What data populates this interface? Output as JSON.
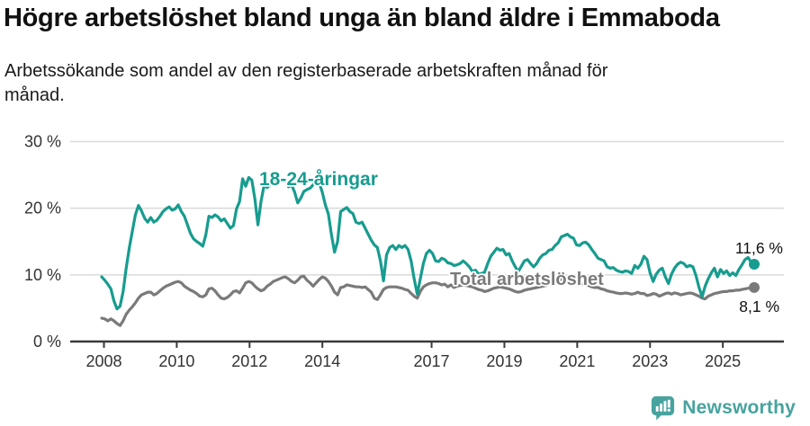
{
  "header": {
    "title": "Högre arbetslöshet bland unga än bland äldre i Emmaboda",
    "subtitle_lines": [
      "Arbetssökande som andel av den registerbaserade arbetskraften månad för",
      "månad."
    ]
  },
  "footer": {
    "brand": "Newsworthy",
    "logo_icon": "bar-chart-speech-bubble"
  },
  "colors": {
    "young": "#179c8f",
    "total": "#7a7a7a",
    "brand": "#47a39e",
    "grid": "#d9d9d9",
    "axis": "#3a3a3a",
    "tick_text": "#333333",
    "value_text": "#111111"
  },
  "chart_data": {
    "type": "line",
    "title": "Högre arbetslöshet bland unga än bland äldre i Emmaboda",
    "subtitle": "Arbetssökande som andel av den registerbaserade arbetskraften månad för månad.",
    "unit": "%",
    "x_start": "2008-01",
    "x_end": "2025-10",
    "x_tick_years": [
      2008,
      2010,
      2012,
      2014,
      2017,
      2019,
      2021,
      2023,
      2025
    ],
    "y_ticks": [
      {
        "v": 0,
        "label": "0 %"
      },
      {
        "v": 10,
        "label": "10 %"
      },
      {
        "v": 20,
        "label": "20 %"
      },
      {
        "v": 30,
        "label": "30 %"
      }
    ],
    "ylim": [
      0,
      30
    ],
    "grid": true,
    "legend_position": "inline-labels",
    "series": [
      {
        "name": "Total arbetslöshet",
        "color": "#7a7a7a",
        "end_label": "8,1 %",
        "end_value": 8.1,
        "values": [
          3.5,
          3.4,
          3.1,
          3.4,
          3.1,
          2.7,
          2.4,
          3.1,
          4.1,
          4.7,
          5.2,
          5.8,
          6.5,
          7.0,
          7.2,
          7.4,
          7.4,
          7.0,
          7.2,
          7.6,
          8.0,
          8.3,
          8.5,
          8.7,
          8.9,
          9.0,
          8.8,
          8.3,
          8.0,
          7.7,
          7.5,
          7.2,
          6.8,
          6.7,
          7.0,
          7.9,
          8.0,
          7.6,
          7.0,
          6.5,
          6.4,
          6.6,
          7.0,
          7.5,
          7.6,
          7.3,
          8.0,
          8.8,
          9.0,
          8.8,
          8.3,
          7.9,
          7.6,
          7.8,
          8.3,
          8.6,
          9.0,
          9.2,
          9.4,
          9.6,
          9.7,
          9.4,
          9.0,
          8.8,
          9.2,
          9.7,
          9.8,
          9.2,
          8.8,
          8.3,
          8.8,
          9.3,
          9.7,
          9.5,
          9.0,
          8.3,
          7.4,
          7.0,
          8.1,
          8.2,
          8.5,
          8.4,
          8.3,
          8.2,
          8.2,
          8.1,
          8.2,
          7.8,
          7.4,
          6.5,
          6.3,
          7.0,
          7.8,
          8.1,
          8.2,
          8.2,
          8.2,
          8.1,
          8.0,
          7.8,
          7.7,
          7.2,
          6.8,
          6.5,
          7.5,
          8.2,
          8.5,
          8.7,
          8.8,
          8.8,
          8.7,
          8.5,
          8.6,
          8.2,
          8.5,
          8.1,
          8.3,
          8.4,
          8.5,
          8.4,
          8.3,
          8.2,
          8.0,
          7.8,
          7.7,
          7.5,
          7.6,
          7.8,
          8.0,
          8.1,
          8.2,
          8.1,
          8.0,
          7.9,
          7.7,
          7.5,
          7.4,
          7.5,
          7.7,
          7.8,
          7.9,
          8.0,
          8.1,
          8.2,
          8.3,
          8.4,
          8.6,
          8.9,
          9.1,
          9.2,
          9.3,
          9.2,
          9.1,
          9.0,
          8.9,
          8.8,
          8.7,
          8.6,
          8.5,
          8.4,
          8.2,
          8.1,
          8.1,
          7.9,
          7.8,
          7.6,
          7.5,
          7.4,
          7.3,
          7.2,
          7.2,
          7.3,
          7.2,
          7.1,
          7.2,
          7.4,
          7.2,
          7.2,
          6.9,
          7.0,
          7.2,
          7.1,
          6.8,
          7.0,
          7.2,
          7.3,
          7.1,
          7.3,
          7.2,
          7.0,
          7.1,
          7.2,
          7.3,
          7.2,
          7.0,
          6.8,
          6.5,
          6.4,
          6.8,
          7.0,
          7.2,
          7.3,
          7.4,
          7.5,
          7.5,
          7.6,
          7.6,
          7.7,
          7.7,
          7.8,
          7.9,
          8.0,
          8.0,
          8.1
        ]
      },
      {
        "name": "18-24-åringar",
        "color": "#179c8f",
        "end_label": "11,6 %",
        "end_value": 11.6,
        "values": [
          9.7,
          9.2,
          8.6,
          7.9,
          6.1,
          4.9,
          5.3,
          7.5,
          11.0,
          14.0,
          16.5,
          19.0,
          20.4,
          19.6,
          18.5,
          17.9,
          18.6,
          17.9,
          18.2,
          18.8,
          19.5,
          19.9,
          20.2,
          19.7,
          19.9,
          20.5,
          19.5,
          18.8,
          17.5,
          16.2,
          15.4,
          15.0,
          14.7,
          14.3,
          16.0,
          18.8,
          18.6,
          19.0,
          18.7,
          18.1,
          18.4,
          17.7,
          17.0,
          17.4,
          19.9,
          21.0,
          24.4,
          23.3,
          24.6,
          24.2,
          21.4,
          17.5,
          21.0,
          23.4,
          23.1,
          23.5,
          23.8,
          24.2,
          24.0,
          24.3,
          24.3,
          23.2,
          23.5,
          22.4,
          20.8,
          21.5,
          22.5,
          22.8,
          23.0,
          23.5,
          24.4,
          23.8,
          22.4,
          20.5,
          19.1,
          16.0,
          13.4,
          15.0,
          19.5,
          19.8,
          20.1,
          19.5,
          19.2,
          17.9,
          17.7,
          17.9,
          17.0,
          16.1,
          15.2,
          14.5,
          14.1,
          12.1,
          9.1,
          13.0,
          14.1,
          14.4,
          13.8,
          14.4,
          14.1,
          14.4,
          13.8,
          12.1,
          9.4,
          7.1,
          9.4,
          11.7,
          13.2,
          13.7,
          13.2,
          12.1,
          12.0,
          12.5,
          12.3,
          11.8,
          11.7,
          11.4,
          11.5,
          11.7,
          12.1,
          11.7,
          11.2,
          10.5,
          10.7,
          10.1,
          10.2,
          10.4,
          11.7,
          12.8,
          13.4,
          14.0,
          13.7,
          13.8,
          13.0,
          13.2,
          12.1,
          11.2,
          10.5,
          11.3,
          12.1,
          12.3,
          11.7,
          11.2,
          11.7,
          12.5,
          13.0,
          13.2,
          13.7,
          13.8,
          14.4,
          14.8,
          15.7,
          15.9,
          16.1,
          15.7,
          15.5,
          14.5,
          14.4,
          14.8,
          14.9,
          14.5,
          13.8,
          13.2,
          12.5,
          12.3,
          12.1,
          11.2,
          11.0,
          11.1,
          10.7,
          10.5,
          10.4,
          10.6,
          10.5,
          10.2,
          11.4,
          11.0,
          11.6,
          12.8,
          12.3,
          10.3,
          9.0,
          10.1,
          10.7,
          11.0,
          9.7,
          8.7,
          10.1,
          11.0,
          11.6,
          11.9,
          11.7,
          11.2,
          11.4,
          11.2,
          9.9,
          8.1,
          6.7,
          8.3,
          9.4,
          10.3,
          11.0,
          9.7,
          10.8,
          10.2,
          10.6,
          9.9,
          10.3,
          9.9,
          10.8,
          11.5,
          12.3,
          12.6,
          11.9,
          11.6
        ]
      }
    ]
  }
}
